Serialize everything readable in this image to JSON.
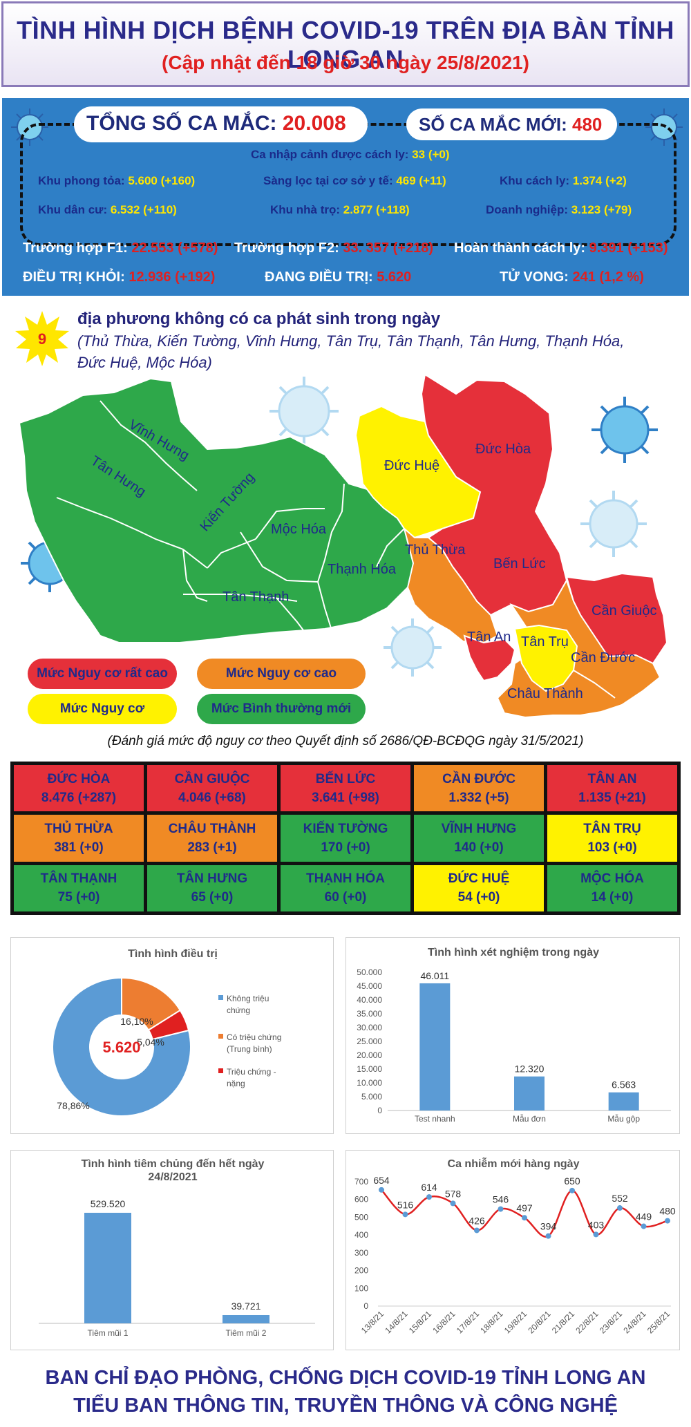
{
  "header": {
    "title": "TÌNH HÌNH DỊCH BỆNH COVID-19 TRÊN ĐỊA BÀN TỈNH LONG AN",
    "subtitle": "(Cập nhật đến 18 giờ 30 ngày 25/8/2021)"
  },
  "stats": {
    "total_label": "TỔNG SỐ CA MẮC: ",
    "total_value": "20.008",
    "new_label": "SỐ CA MẮC MỚI: ",
    "new_value": "480",
    "immigration_label": "Ca nhập cảnh được cách ly: ",
    "immigration_value": "33 (+0)",
    "lockdown_label": "Khu phong tỏa: ",
    "lockdown_value": "5.600 (+160)",
    "screening_label": "Sàng lọc tại cơ sở y tế: ",
    "screening_value": "469 (+11)",
    "isolation_zone_label": "Khu cách ly: ",
    "isolation_zone_value": "1.374 (+2)",
    "residential_label": "Khu dân cư: ",
    "residential_value": "6.532 (+110)",
    "boarding_label": "Khu nhà trọ: ",
    "boarding_value": "2.877 (+118)",
    "enterprise_label": "Doanh nghiệp: ",
    "enterprise_value": "3.123 (+79)",
    "f1_label": "Trường hợp F1: ",
    "f1_value": "22.553 (+578)",
    "f2_label": "Trường hợp F2: ",
    "f2_value": "33. 357 (+218)",
    "completed_label": "Hoàn thành cách ly: ",
    "completed_value": "9.391 (+153)",
    "recovered_label": "ĐIỀU TRỊ KHỎI: ",
    "recovered_value": "12.936 (+192)",
    "treating_label": "ĐANG ĐIỀU TRỊ: ",
    "treating_value": "5.620",
    "deaths_label": "TỬ VONG: ",
    "deaths_value": "241 (1,2 %)"
  },
  "localities": {
    "count": "9",
    "headline": "địa phương không có ca phát sinh trong ngày",
    "list": "(Thủ Thừa, Kiến Tường, Vĩnh Hưng, Tân Trụ, Tân Thạnh, Tân Hưng, Thạnh Hóa, Đức Huệ, Mộc Hóa)"
  },
  "map_labels": {
    "vinh_hung": "Vĩnh Hưng",
    "tan_hung": "Tân Hưng",
    "kien_tuong": "Kiến Tường",
    "moc_hoa": "Mộc Hóa",
    "thanh_hoa": "Thạnh Hóa",
    "tan_thanh": "Tân Thạnh",
    "duc_hue": "Đức Huệ",
    "duc_hoa": "Đức Hòa",
    "thu_thua": "Thủ Thừa",
    "ben_luc": "Bến Lức",
    "can_giuoc": "Cần Giuộc",
    "tan_an": "Tân An",
    "tan_tru": "Tân Trụ",
    "can_duoc": "Cần Đước",
    "chau_thanh": "Châu Thành"
  },
  "legend": {
    "very_high": "Mức Nguy cơ rất cao",
    "high": "Mức Nguy cơ cao",
    "risk": "Mức Nguy cơ",
    "normal": "Mức Bình thường mới"
  },
  "colors": {
    "very_high": "#e5303a",
    "high": "#f08a24",
    "risk": "#fff200",
    "normal": "#2ea84a",
    "stats_blue": "#2f7fc6"
  },
  "decision_note": "(Đánh giá mức độ nguy cơ theo Quyết định số 2686/QĐ-BCĐQG ngày 31/5/2021)",
  "districts": [
    {
      "name": "ĐỨC HÒA",
      "value": "8.476 (+287)",
      "level": "very_high"
    },
    {
      "name": "CẦN GIUỘC",
      "value": "4.046 (+68)",
      "level": "very_high"
    },
    {
      "name": "BẾN LỨC",
      "value": "3.641 (+98)",
      "level": "very_high"
    },
    {
      "name": "CẦN ĐƯỚC",
      "value": "1.332 (+5)",
      "level": "high"
    },
    {
      "name": "TÂN AN",
      "value": "1.135 (+21)",
      "level": "very_high"
    },
    {
      "name": "THỦ THỪA",
      "value": "381 (+0)",
      "level": "high"
    },
    {
      "name": "CHÂU THÀNH",
      "value": "283 (+1)",
      "level": "high"
    },
    {
      "name": "KIẾN TƯỜNG",
      "value": "170 (+0)",
      "level": "normal"
    },
    {
      "name": "VĨNH HƯNG",
      "value": "140 (+0)",
      "level": "normal"
    },
    {
      "name": "TÂN TRỤ",
      "value": "103 (+0)",
      "level": "risk"
    },
    {
      "name": "TÂN THẠNH",
      "value": "75 (+0)",
      "level": "normal"
    },
    {
      "name": "TÂN HƯNG",
      "value": "65 (+0)",
      "level": "normal"
    },
    {
      "name": "THẠNH HÓA",
      "value": "60 (+0)",
      "level": "normal"
    },
    {
      "name": "ĐỨC HUỆ",
      "value": "54 (+0)",
      "level": "risk"
    },
    {
      "name": "MỘC HÓA",
      "value": "14 (+0)",
      "level": "normal"
    }
  ],
  "chart_data": [
    {
      "type": "pie",
      "title": "Tình hình điều trị",
      "center_label": "5.620",
      "slices": [
        {
          "name": "Không triệu chứng",
          "value": 78.86,
          "label": "78,86%",
          "color": "#5b9bd5"
        },
        {
          "name": "Có triệu chứng (Trung bình)",
          "value": 16.1,
          "label": "16,10%",
          "color": "#ed7d31"
        },
        {
          "name": "Triệu chứng - nặng",
          "value": 5.04,
          "label": "5,04%",
          "color": "#e02020"
        }
      ]
    },
    {
      "type": "bar",
      "title": "Tình hình xét nghiệm trong ngày",
      "categories": [
        "Test nhanh",
        "Mẫu đơn",
        "Mẫu gộp"
      ],
      "values": [
        46011,
        12320,
        6563
      ],
      "labels": [
        "46.011",
        "12.320",
        "6.563"
      ],
      "ylim": [
        0,
        50000
      ],
      "yticks": [
        "0",
        "5.000",
        "10.000",
        "15.000",
        "20.000",
        "25.000",
        "30.000",
        "35.000",
        "40.000",
        "45.000",
        "50.000"
      ]
    },
    {
      "type": "bar",
      "title": "Tình hình tiêm chủng đến hết ngày 24/8/2021",
      "title_line1": "Tình hình tiêm chủng đến hết ngày",
      "title_line2": "24/8/2021",
      "categories": [
        "Tiêm mũi 1",
        "Tiêm mũi 2"
      ],
      "values": [
        529520,
        39721
      ],
      "labels": [
        "529.520",
        "39.721"
      ]
    },
    {
      "type": "line",
      "title": "Ca nhiễm mới hàng ngày",
      "x": [
        "13/8/21",
        "14/8/21",
        "15/8/21",
        "16/8/21",
        "17/8/21",
        "18/8/21",
        "19/8/21",
        "20/8/21",
        "21/8/21",
        "22/8/21",
        "23/8/21",
        "24/8/21",
        "25/8/21"
      ],
      "values": [
        654,
        516,
        614,
        578,
        426,
        546,
        497,
        394,
        650,
        403,
        552,
        449,
        480
      ],
      "ylim": [
        0,
        700
      ],
      "yticks": [
        "0",
        "100",
        "200",
        "300",
        "400",
        "500",
        "600",
        "700"
      ]
    }
  ],
  "footer": {
    "line1": "BAN CHỈ ĐẠO PHÒNG, CHỐNG DỊCH COVID-19 TỈNH LONG AN",
    "line2": "TIỂU BAN THÔNG TIN, TRUYỀN THÔNG VÀ CÔNG NGHỆ"
  }
}
